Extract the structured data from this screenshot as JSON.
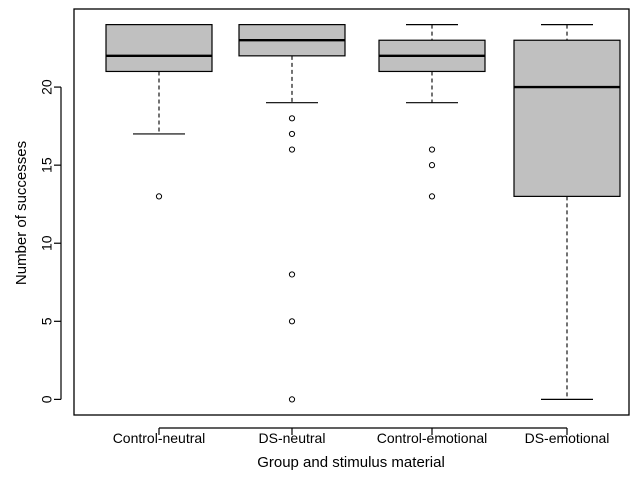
{
  "chart_data": {
    "type": "boxplot",
    "title": "",
    "xlabel": "Group and stimulus material",
    "ylabel": "Number of successes",
    "ylim": [
      -1,
      25
    ],
    "yticks": [
      0,
      5,
      10,
      15,
      20
    ],
    "box_color": "#c0c0c0",
    "grid": false,
    "categories": [
      "Control-neutral",
      "DS-neutral",
      "Control-emotional",
      "DS-emotional"
    ],
    "boxes": [
      {
        "category": "Control-neutral",
        "whisker_low": 17,
        "q1": 21,
        "median": 22,
        "q3": 24,
        "whisker_high": 24,
        "outliers": [
          13
        ]
      },
      {
        "category": "DS-neutral",
        "whisker_low": 19,
        "q1": 22,
        "median": 23,
        "q3": 24,
        "whisker_high": 24,
        "outliers": [
          18,
          17,
          16,
          8,
          5,
          0
        ]
      },
      {
        "category": "Control-emotional",
        "whisker_low": 19,
        "q1": 21,
        "median": 22,
        "q3": 23,
        "whisker_high": 24,
        "outliers": [
          16,
          15,
          13
        ]
      },
      {
        "category": "DS-emotional",
        "whisker_low": 0,
        "q1": 13,
        "median": 20,
        "q3": 23,
        "whisker_high": 24,
        "outliers": []
      }
    ]
  }
}
